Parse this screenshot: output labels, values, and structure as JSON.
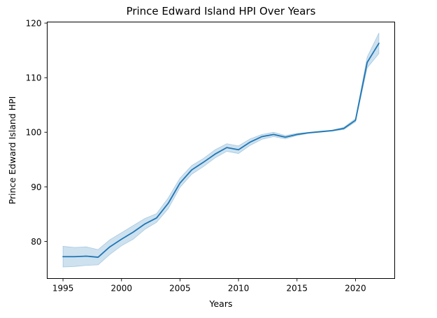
{
  "chart_data": {
    "type": "line",
    "title": "Prince Edward Island HPI Over Years",
    "xlabel": "Years",
    "ylabel": "Prince Edward Island HPI",
    "xlim": [
      1993.65,
      2023.35
    ],
    "ylim": [
      73.2,
      120.2
    ],
    "xticks": [
      1995,
      2000,
      2005,
      2010,
      2015,
      2020
    ],
    "yticks": [
      80,
      90,
      100,
      110,
      120
    ],
    "grid": false,
    "legend": "none",
    "colors": {
      "line": "#1f77b4",
      "band": "#1f77b4"
    },
    "series": [
      {
        "x": [
          1995,
          1996,
          1997,
          1998,
          1999,
          2000,
          2001,
          2002,
          2003,
          2004,
          2005,
          2006,
          2007,
          2008,
          2009,
          2010,
          2011,
          2012,
          2013,
          2014,
          2015,
          2016,
          2017,
          2018,
          2019,
          2020,
          2021,
          2022
        ],
        "y": [
          77.2,
          77.2,
          77.3,
          77.1,
          79.0,
          80.4,
          81.7,
          83.2,
          84.3,
          87.0,
          90.7,
          93.1,
          94.5,
          96.0,
          97.2,
          96.8,
          98.2,
          99.2,
          99.6,
          99.1,
          99.6,
          99.9,
          100.1,
          100.3,
          100.7,
          102.2,
          112.8,
          116.3
        ],
        "ci_lower": [
          75.3,
          75.4,
          75.6,
          75.7,
          77.6,
          79.2,
          80.4,
          82.2,
          83.5,
          86.0,
          89.9,
          92.3,
          93.7,
          95.3,
          96.5,
          96.1,
          97.6,
          98.7,
          99.2,
          98.8,
          99.4,
          99.8,
          100.0,
          100.2,
          100.5,
          101.9,
          111.8,
          114.4
        ],
        "ci_upper": [
          79.1,
          78.9,
          79.0,
          78.5,
          80.3,
          81.6,
          82.9,
          84.2,
          85.1,
          88.0,
          91.6,
          93.9,
          95.2,
          96.8,
          97.9,
          97.5,
          98.8,
          99.6,
          100.0,
          99.4,
          99.8,
          100.0,
          100.2,
          100.4,
          100.9,
          102.5,
          113.8,
          118.2
        ]
      }
    ]
  }
}
